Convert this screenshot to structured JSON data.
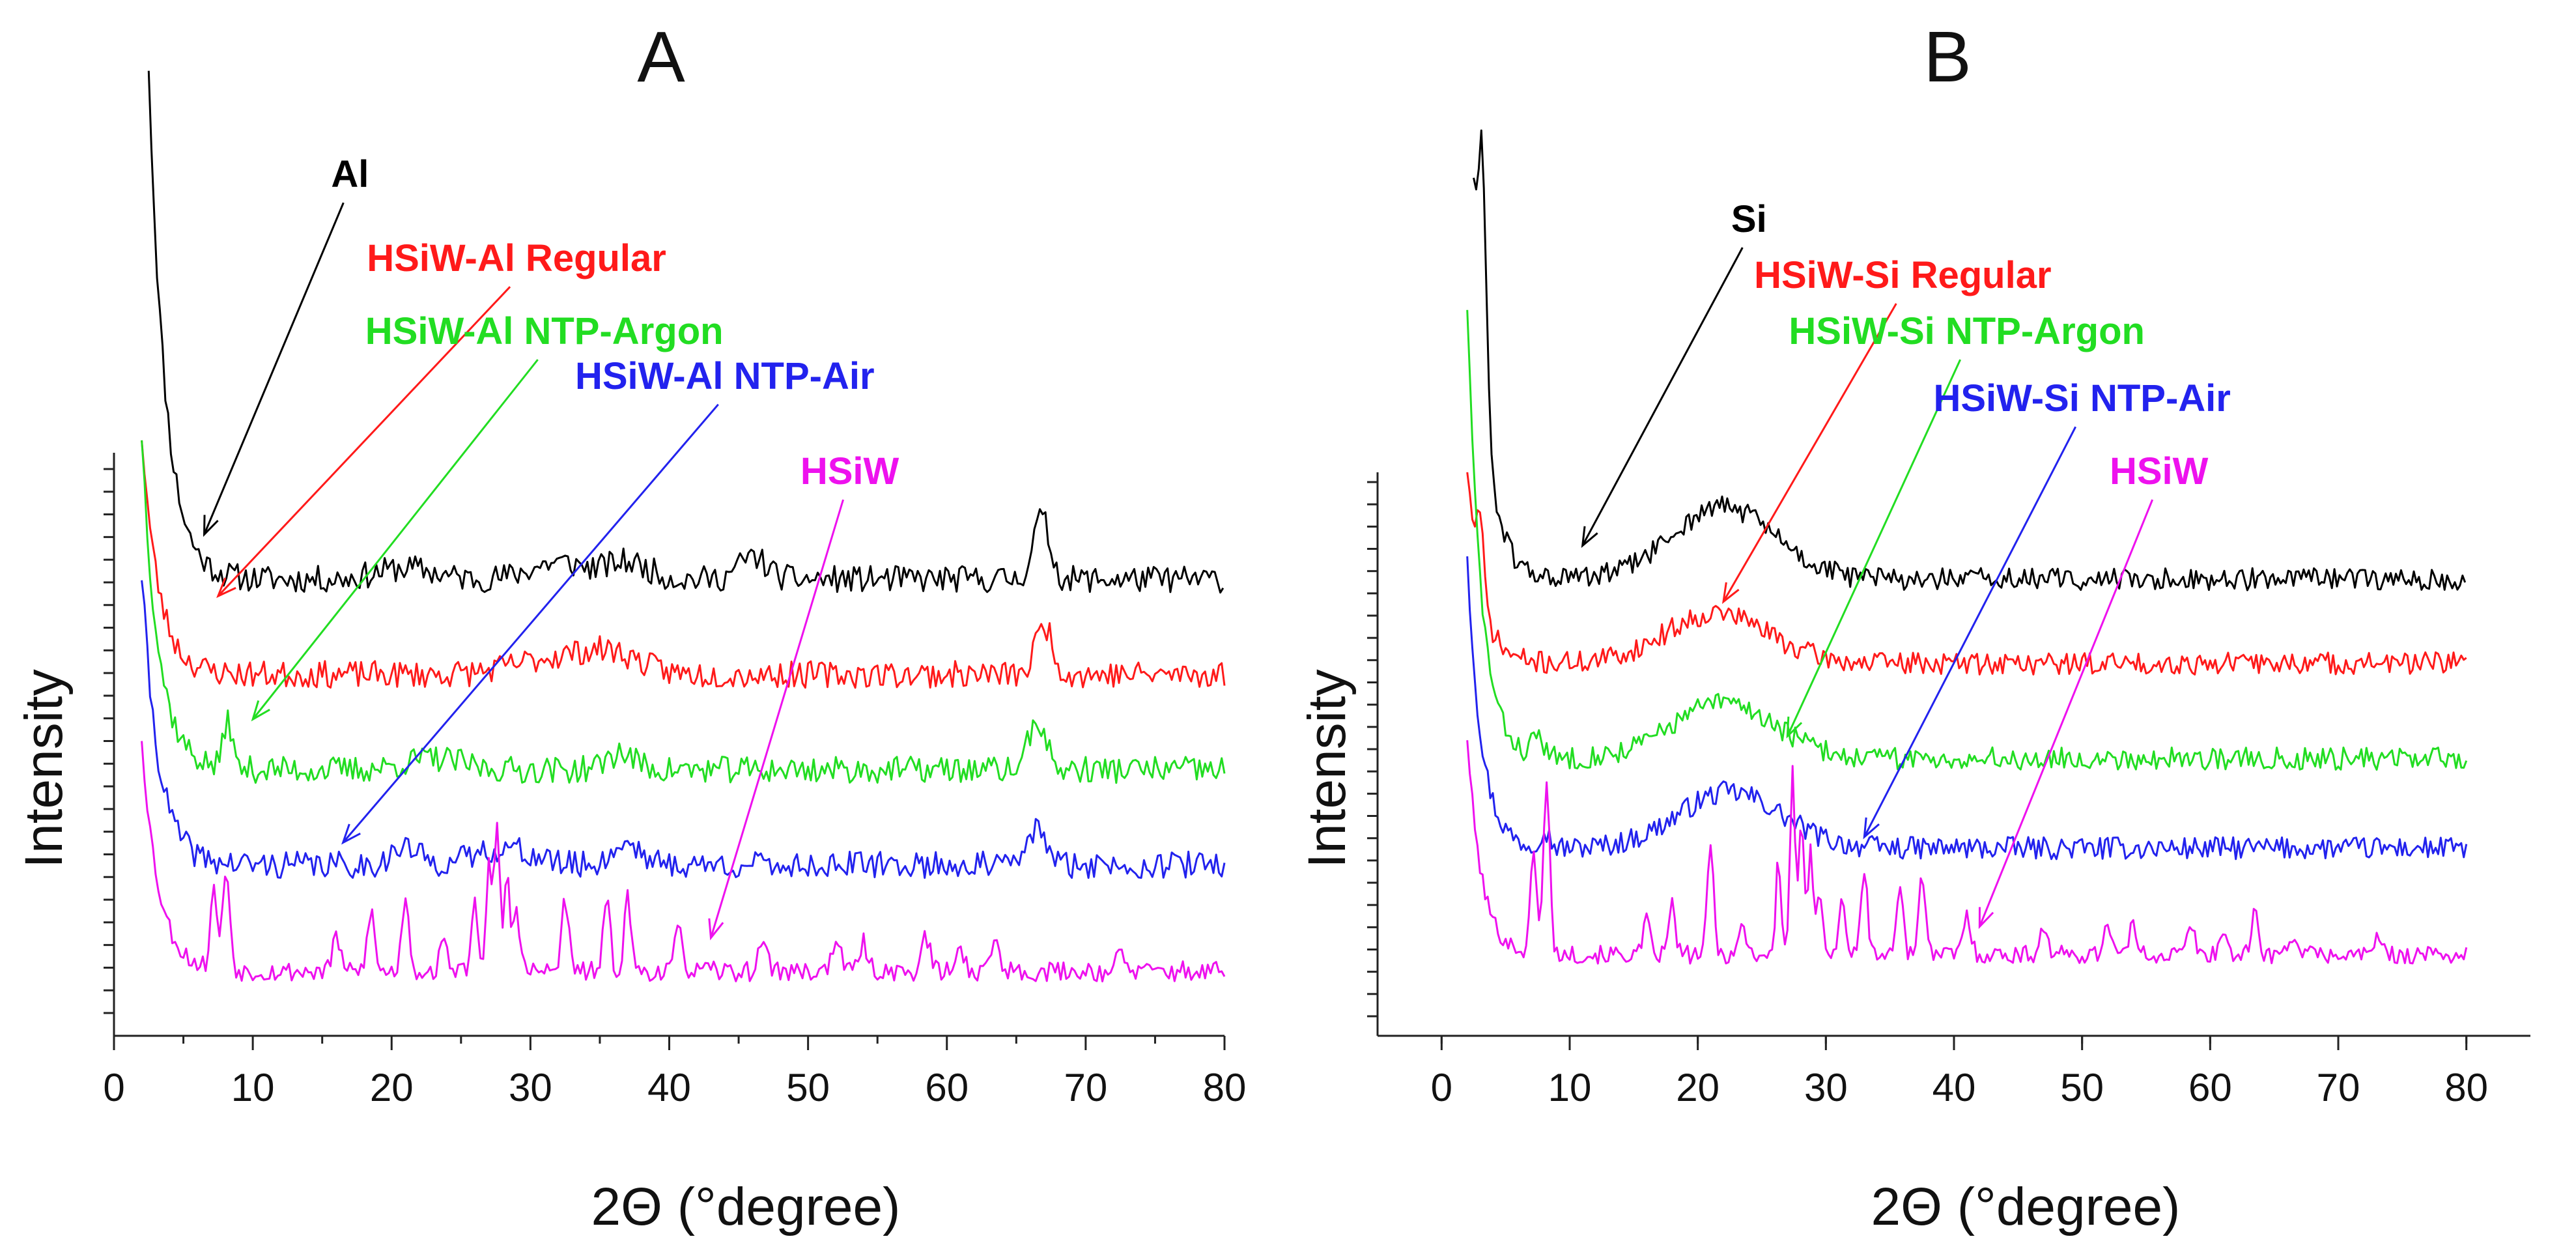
{
  "chart_data": [
    {
      "id": "A",
      "type": "line",
      "title": "A",
      "xlabel": "2Θ (°degree)",
      "ylabel": "Intensity",
      "xlim": [
        0,
        80
      ],
      "x_ticks": [
        "0",
        "10",
        "20",
        "30",
        "40",
        "50",
        "60",
        "70",
        "80"
      ],
      "ylim": [
        0,
        100
      ],
      "y_ticks_labeled": false,
      "series": [
        {
          "name": "Al",
          "color": "#000000",
          "baseline": 78,
          "start": 170,
          "start_x": 2.5,
          "decay": 1.2,
          "noise": 2.4,
          "seed": 11,
          "peaks": [
            [
              46,
              4,
              1
            ],
            [
              66.8,
              11,
              0.6
            ],
            [
              32,
              3,
              2
            ],
            [
              37,
              3,
              1.5
            ],
            [
              21,
              2,
              2
            ]
          ],
          "arrow_to": [
            6.5,
            86
          ],
          "label_at": [
            17,
            148
          ]
        },
        {
          "name": "HSiW-Al Regular",
          "color": "#ff1a1a",
          "baseline": 61,
          "start": 104,
          "start_x": 2,
          "decay": 1.2,
          "noise": 2.4,
          "seed": 23,
          "peaks": [
            [
              67,
              9,
              0.6
            ],
            [
              32,
              3,
              3
            ],
            [
              36,
              3,
              2
            ]
          ],
          "arrow_to": [
            7.5,
            75
          ],
          "label_at": [
            29,
            133
          ]
        },
        {
          "name": "HSiW-Al NTP-Argon",
          "color": "#22dd22",
          "baseline": 44,
          "start": 104,
          "start_x": 2,
          "decay": 1.2,
          "noise": 2.4,
          "seed": 37,
          "peaks": [
            [
              8.2,
              9,
              0.3
            ],
            [
              66.5,
              9,
              0.6
            ],
            [
              36.5,
              3,
              1
            ],
            [
              23,
              2,
              2
            ]
          ],
          "arrow_to": [
            10,
            53
          ],
          "label_at": [
            31,
            120
          ]
        },
        {
          "name": "HSiW-Al NTP-Air",
          "color": "#2222ee",
          "baseline": 27,
          "start": 79,
          "start_x": 2,
          "decay": 1.2,
          "noise": 2.4,
          "seed": 41,
          "peaks": [
            [
              66.5,
              7,
              0.6
            ],
            [
              37,
              4,
              1
            ],
            [
              28,
              3,
              2
            ],
            [
              21,
              3,
              1
            ]
          ],
          "arrow_to": [
            16.5,
            31
          ],
          "label_at": [
            44,
            112
          ]
        },
        {
          "name": "HSiW",
          "color": "#ee11ee",
          "baseline": 8,
          "start": 50,
          "start_x": 2,
          "decay": 1.2,
          "noise": 1.8,
          "seed": 53,
          "peaks": [
            [
              7.2,
              14,
              0.25
            ],
            [
              8.1,
              18,
              0.25
            ],
            [
              16,
              7,
              0.25
            ],
            [
              18.5,
              11,
              0.25
            ],
            [
              21,
              14,
              0.25
            ],
            [
              23.8,
              5,
              0.3
            ],
            [
              26,
              12,
              0.25
            ],
            [
              27,
              19,
              0.2
            ],
            [
              27.6,
              25,
              0.2
            ],
            [
              28.3,
              17,
              0.2
            ],
            [
              29,
              11,
              0.25
            ],
            [
              32.5,
              13,
              0.25
            ],
            [
              35.5,
              12,
              0.25
            ],
            [
              37,
              13,
              0.25
            ],
            [
              40.7,
              7,
              0.3
            ],
            [
              46.8,
              6,
              0.3
            ],
            [
              52,
              6,
              0.3
            ],
            [
              54,
              5,
              0.3
            ],
            [
              58.5,
              6,
              0.3
            ],
            [
              61,
              4,
              0.3
            ],
            [
              63.5,
              6,
              0.3
            ],
            [
              72.5,
              3,
              0.3
            ]
          ],
          "arrow_to": [
            43,
            14
          ],
          "label_at": [
            53,
            95
          ]
        }
      ]
    },
    {
      "id": "B",
      "type": "line",
      "title": "B",
      "xlabel": "2Θ (°degree)",
      "ylabel": "Intensity",
      "xlim": [
        -5,
        85
      ],
      "x_ticks": [
        "0",
        "10",
        "20",
        "30",
        "40",
        "50",
        "60",
        "70",
        "80"
      ],
      "ylim": [
        0,
        100
      ],
      "y_ticks_labeled": false,
      "series": [
        {
          "name": "Si",
          "color": "#000000",
          "baseline": 78,
          "start": 148,
          "start_x": 2.5,
          "decay": 1.1,
          "noise": 2.0,
          "seed": 61,
          "peaks": [
            [
              22,
              13,
              4
            ],
            [
              3.2,
              40,
              0.3
            ]
          ],
          "arrow_to": [
            11,
            84
          ],
          "label_at": [
            24,
            140
          ]
        },
        {
          "name": "HSiW-Si Regular",
          "color": "#ff1a1a",
          "baseline": 63,
          "start": 98,
          "start_x": 2,
          "decay": 1.1,
          "noise": 2.0,
          "seed": 71,
          "peaks": [
            [
              21.5,
              9,
              4
            ],
            [
              3,
              12,
              0.3
            ]
          ],
          "arrow_to": [
            22,
            74
          ],
          "label_at": [
            36,
            130
          ]
        },
        {
          "name": "HSiW-Si NTP-Argon",
          "color": "#22dd22",
          "baseline": 46,
          "start": 127,
          "start_x": 2,
          "decay": 1.1,
          "noise": 2.0,
          "seed": 83,
          "peaks": [
            [
              22,
              10,
              4
            ],
            [
              7.5,
              4,
              0.4
            ]
          ],
          "arrow_to": [
            27,
            50
          ],
          "label_at": [
            41,
            120
          ]
        },
        {
          "name": "HSiW-Si NTP-Air",
          "color": "#2222ee",
          "baseline": 30,
          "start": 83,
          "start_x": 2,
          "decay": 1.1,
          "noise": 2.0,
          "seed": 97,
          "peaks": [
            [
              22.5,
              10,
              4
            ],
            [
              8,
              3,
              0.4
            ]
          ],
          "arrow_to": [
            33,
            32
          ],
          "label_at": [
            50,
            108
          ]
        },
        {
          "name": "HSiW",
          "color": "#ee11ee",
          "baseline": 11,
          "start": 50,
          "start_x": 2,
          "decay": 1.1,
          "noise": 1.6,
          "seed": 101,
          "peaks": [
            [
              7.2,
              18,
              0.25
            ],
            [
              8.2,
              30,
              0.25
            ],
            [
              16,
              6,
              0.25
            ],
            [
              18,
              9,
              0.25
            ],
            [
              21,
              19,
              0.25
            ],
            [
              23.5,
              5,
              0.3
            ],
            [
              26.3,
              17,
              0.2
            ],
            [
              27.4,
              33,
              0.2
            ],
            [
              28.1,
              23,
              0.2
            ],
            [
              28.8,
              18,
              0.2
            ],
            [
              29.5,
              12,
              0.25
            ],
            [
              31.3,
              10,
              0.25
            ],
            [
              33,
              15,
              0.25
            ],
            [
              35.8,
              13,
              0.25
            ],
            [
              37.5,
              15,
              0.25
            ],
            [
              41,
              7,
              0.3
            ],
            [
              47,
              5,
              0.3
            ],
            [
              52,
              6,
              0.3
            ],
            [
              54,
              5,
              0.3
            ],
            [
              58.5,
              5,
              0.3
            ],
            [
              61,
              4,
              0.3
            ],
            [
              63.5,
              7,
              0.3
            ],
            [
              66.5,
              4,
              0.3
            ],
            [
              73,
              3,
              0.3
            ]
          ],
          "arrow_to": [
            42,
            16
          ],
          "label_at": [
            56,
            95
          ]
        }
      ]
    }
  ]
}
